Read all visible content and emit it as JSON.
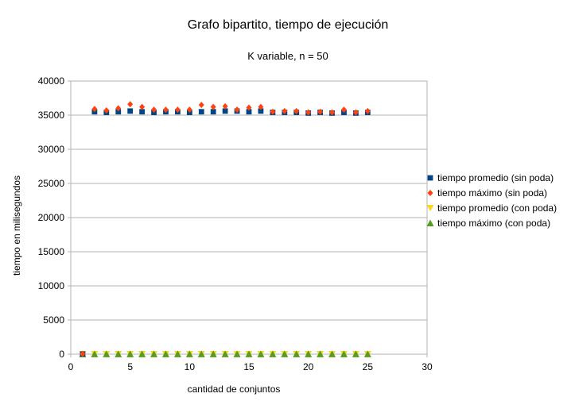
{
  "chart_data": {
    "type": "scatter",
    "title": "Grafo bipartito, tiempo de ejecución",
    "subtitle": "K variable, n = 50",
    "xlabel": "cantidad de conjuntos",
    "ylabel": "tiempo en milisegundos",
    "xlim": [
      0,
      30
    ],
    "ylim": [
      0,
      40000
    ],
    "x_ticks": [
      0,
      5,
      10,
      15,
      20,
      25,
      30
    ],
    "y_ticks": [
      0,
      5000,
      10000,
      15000,
      20000,
      25000,
      30000,
      35000,
      40000
    ],
    "grid": "horizontal",
    "legend_position": "right",
    "series": [
      {
        "name": "tiempo promedio (sin poda)",
        "marker": "square",
        "color": "#004586",
        "x": [
          1,
          2,
          3,
          4,
          5,
          6,
          7,
          8,
          9,
          10,
          11,
          12,
          13,
          14,
          15,
          16,
          17,
          18,
          19,
          20,
          21,
          22,
          23,
          24,
          25
        ],
        "y": [
          20,
          35500,
          35400,
          35500,
          35600,
          35500,
          35400,
          35500,
          35500,
          35400,
          35500,
          35500,
          35600,
          35600,
          35500,
          35600,
          35400,
          35400,
          35400,
          35300,
          35400,
          35300,
          35400,
          35300,
          35400
        ]
      },
      {
        "name": "tiempo máximo (sin poda)",
        "marker": "diamond",
        "color": "#ff420e",
        "x": [
          1,
          2,
          3,
          4,
          5,
          6,
          7,
          8,
          9,
          10,
          11,
          12,
          13,
          14,
          15,
          16,
          17,
          18,
          19,
          20,
          21,
          22,
          23,
          24,
          25
        ],
        "y": [
          40,
          35900,
          35700,
          36000,
          36600,
          36200,
          35800,
          35800,
          35800,
          35800,
          36500,
          36200,
          36300,
          35800,
          36100,
          36200,
          35500,
          35600,
          35600,
          35400,
          35500,
          35400,
          35800,
          35400,
          35600
        ]
      },
      {
        "name": "tiempo promedio (con poda)",
        "marker": "triangle-down",
        "color": "#ffd320",
        "x": [
          1,
          2,
          3,
          4,
          5,
          6,
          7,
          8,
          9,
          10,
          11,
          12,
          13,
          14,
          15,
          16,
          17,
          18,
          19,
          20,
          21,
          22,
          23,
          24,
          25
        ],
        "y": [
          5,
          5,
          5,
          5,
          5,
          5,
          5,
          5,
          5,
          5,
          5,
          5,
          5,
          5,
          5,
          5,
          5,
          5,
          5,
          5,
          5,
          5,
          5,
          5,
          5
        ]
      },
      {
        "name": "tiempo máximo (con poda)",
        "marker": "triangle-up",
        "color": "#579d1c",
        "x": [
          1,
          2,
          3,
          4,
          5,
          6,
          7,
          8,
          9,
          10,
          11,
          12,
          13,
          14,
          15,
          16,
          17,
          18,
          19,
          20,
          21,
          22,
          23,
          24,
          25
        ],
        "y": [
          10,
          10,
          10,
          10,
          10,
          10,
          10,
          10,
          10,
          10,
          10,
          10,
          10,
          10,
          10,
          10,
          10,
          10,
          10,
          10,
          10,
          10,
          10,
          10,
          10
        ]
      }
    ]
  }
}
